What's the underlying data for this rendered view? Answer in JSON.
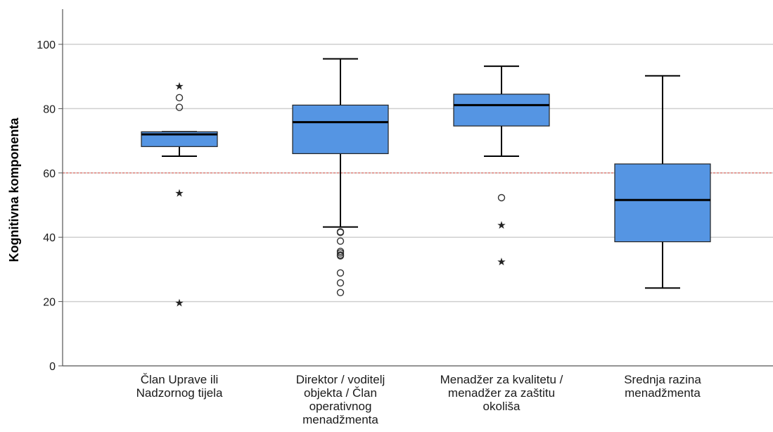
{
  "chart_data": {
    "type": "boxplot",
    "ylabel": "Kognitivna komponenta",
    "xlabel": "",
    "ylim": [
      0,
      110
    ],
    "yticks": [
      0,
      20,
      40,
      60,
      80,
      100
    ],
    "grid": "horizontal",
    "reference_line": {
      "y": 60,
      "color": "#e0645a",
      "style": "dashed"
    },
    "box_color": "#5595e3",
    "categories": [
      {
        "lines": [
          "Član Uprave ili",
          "Nadzornog tijela"
        ]
      },
      {
        "lines": [
          "Direktor / voditelj",
          "objekta / Član",
          "operativnog",
          "menadžmenta"
        ]
      },
      {
        "lines": [
          "Menadžer za kvalitetu /",
          "menadžer za zaštitu",
          "okoliša"
        ]
      },
      {
        "lines": [
          "Srednja razina",
          "menadžmenta"
        ]
      }
    ],
    "boxes": [
      {
        "whisker_low": 65.2,
        "q1": 68.2,
        "median": 72.0,
        "q3": 72.8,
        "whisker_high": 72.8,
        "outliers": [
          83.4,
          80.4
        ],
        "extremes": [
          87.2,
          53.9,
          19.8
        ]
      },
      {
        "whisker_low": 43.2,
        "q1": 66.0,
        "median": 75.8,
        "q3": 81.1,
        "whisker_high": 95.5,
        "outliers": [
          41.7,
          41.5,
          38.8,
          35.6,
          35.1,
          34.5,
          34.2,
          28.9,
          25.8,
          22.8
        ],
        "extremes": []
      },
      {
        "whisker_low": 65.2,
        "q1": 74.6,
        "median": 81.1,
        "q3": 84.5,
        "whisker_high": 93.2,
        "outliers": [
          52.3
        ],
        "extremes": [
          44.0,
          32.6
        ]
      },
      {
        "whisker_low": 24.2,
        "q1": 38.6,
        "median": 51.6,
        "q3": 62.8,
        "whisker_high": 90.2,
        "outliers": [],
        "extremes": []
      }
    ]
  }
}
